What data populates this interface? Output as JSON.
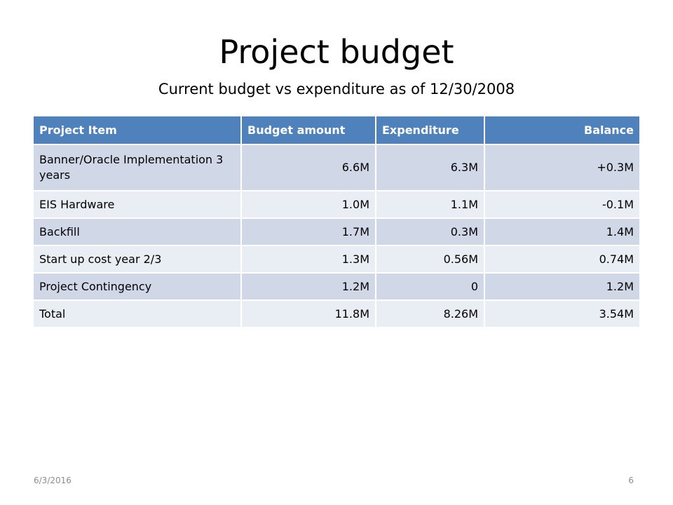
{
  "slide": {
    "title": "Project budget",
    "subtitle": "Current budget vs expenditure as of 12/30/2008"
  },
  "table": {
    "headers": [
      "Project Item",
      "Budget amount",
      "Expenditure",
      "Balance"
    ],
    "rows": [
      [
        "Banner/Oracle Implementation 3 years",
        "6.6M",
        "6.3M",
        "+0.3M"
      ],
      [
        "EIS Hardware",
        "1.0M",
        "1.1M",
        "-0.1M"
      ],
      [
        "Backfill",
        "1.7M",
        "0.3M",
        "1.4M"
      ],
      [
        "Start up cost year 2/3",
        "1.3M",
        "0.56M",
        "0.74M"
      ],
      [
        "Project Contingency",
        "1.2M",
        "0",
        "1.2M"
      ],
      [
        "Total",
        "11.8M",
        "8.26M",
        "3.54M"
      ]
    ]
  },
  "footer": {
    "date": "6/3/2016",
    "page_number": "6"
  },
  "colors": {
    "header_bg": "#4f81bd",
    "row_band_dark": "#d0d8e8",
    "row_band_light": "#e9edf4"
  }
}
